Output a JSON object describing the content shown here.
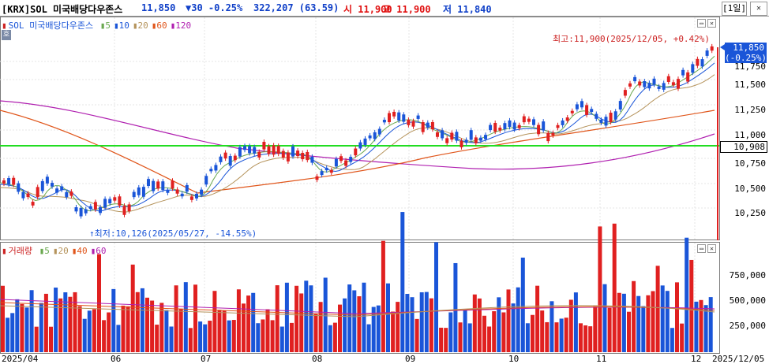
{
  "header": {
    "exchange": "[KRX]",
    "name": "SOL 미국배당다우존스",
    "price": "11,850",
    "change": "▼30 -0.25%",
    "volume": "322,207 (63.59)",
    "open": "시 11,900",
    "high": "고 11,900",
    "low": "저 11,840",
    "period": "[1일]"
  },
  "price_legend": {
    "name": "SOL 미국배당다우존스",
    "ma5": "5",
    "ma10": "10",
    "ma20": "20",
    "ma60": "60",
    "ma120": "120"
  },
  "volume_legend": {
    "name": "거래량",
    "ma5": "5",
    "ma20": "20",
    "ma40": "40",
    "ma60": "60"
  },
  "annotations": {
    "high": "최고:11,900(2025/12/05, +0.42%)",
    "low": "최저:10,126(2025/05/27, -14.55%)"
  },
  "price_axis": [
    "11,750",
    "11,500",
    "11,250",
    "11,000",
    "10,750",
    "10,500",
    "10,250"
  ],
  "volume_axis": [
    "750,000",
    "500,000",
    "250,000"
  ],
  "badges": {
    "current_price": "11,850",
    "current_pct": "(-0.25%)",
    "hline_price": "10,908"
  },
  "x_axis": [
    "2025/04",
    "06",
    "07",
    "08",
    "09",
    "10",
    "11",
    "12",
    "2025/12/05"
  ],
  "side_label": "호",
  "colors": {
    "up": "#e02020",
    "down": "#1a55d8",
    "ma5": "#6aa84f",
    "ma10": "#1a55d8",
    "ma20": "#b5935b",
    "ma60": "#e0551a",
    "ma120": "#b020b0",
    "hline": "#22dd22"
  }
}
